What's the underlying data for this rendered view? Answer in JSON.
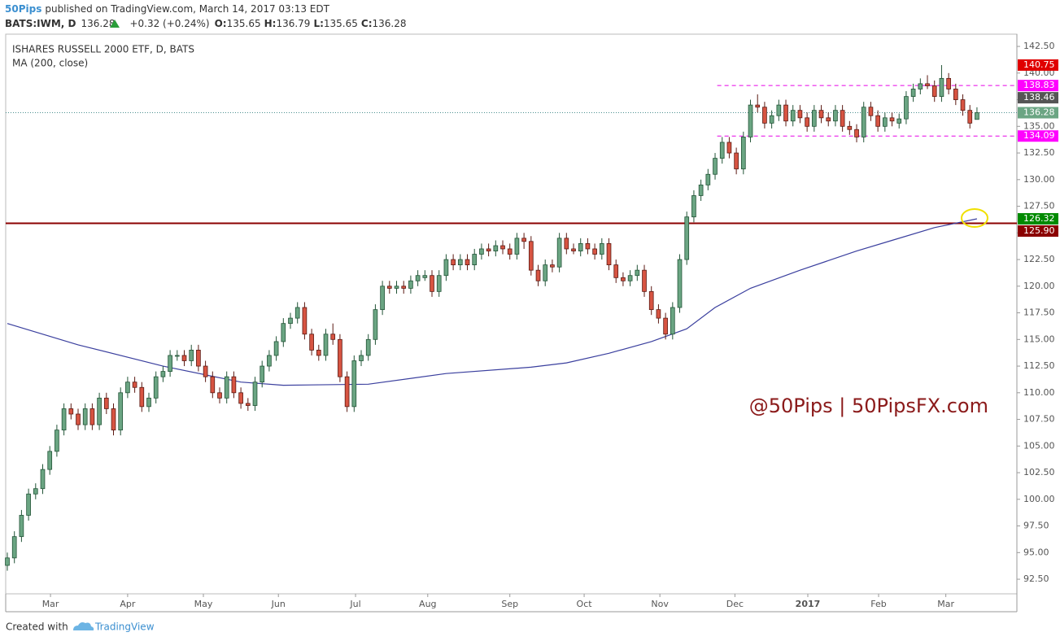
{
  "header": {
    "author": "50Pips",
    "published": "published on TradingView.com, March 14, 2017 03:13 EDT"
  },
  "quote": {
    "symbol": "BATS:IWM, D",
    "last": "136.28",
    "change": "+0.32 (+0.24%)",
    "open_label": "O:",
    "open": "135.65",
    "high_label": "H:",
    "high": "136.79",
    "low_label": "L:",
    "low": "135.65",
    "close_label": "C:",
    "close": "136.28"
  },
  "chart_data": {
    "type": "candlestick",
    "title": "ISHARES RUSSELL 2000 ETF, D, BATS",
    "up_color": "#6ba583",
    "up_border": "#225437",
    "down_color": "#d75442",
    "down_border": "#5b1a13",
    "candles": [
      [
        93.8,
        95,
        93.3,
        94.5
      ],
      [
        94.5,
        97,
        94,
        96.5
      ],
      [
        96.5,
        99,
        96,
        98.5
      ],
      [
        98.5,
        101,
        98,
        100.5
      ],
      [
        100.5,
        101.5,
        100,
        101
      ],
      [
        101,
        103.3,
        100.5,
        102.8
      ],
      [
        102.8,
        105,
        102.3,
        104.5
      ],
      [
        104.5,
        107,
        104,
        106.5
      ],
      [
        106.5,
        109,
        106,
        108.5
      ],
      [
        108.5,
        109,
        107.5,
        108
      ],
      [
        108,
        108.5,
        106.5,
        107
      ],
      [
        107,
        109,
        106.5,
        108.5
      ],
      [
        108.5,
        109,
        106.5,
        107
      ],
      [
        107,
        110,
        106.5,
        109.5
      ],
      [
        109.5,
        110,
        108,
        108.5
      ],
      [
        108.5,
        109,
        106,
        106.5
      ],
      [
        106.5,
        110.5,
        106,
        110
      ],
      [
        110,
        111.5,
        109.5,
        111
      ],
      [
        111,
        111.5,
        110,
        110.5
      ],
      [
        110.5,
        111,
        108.2,
        108.7
      ],
      [
        108.7,
        110,
        108.2,
        109.5
      ],
      [
        109.5,
        112,
        109,
        111.5
      ],
      [
        111.5,
        112.5,
        111,
        112
      ],
      [
        112,
        114,
        111.5,
        113.5
      ],
      [
        113.5,
        114,
        113,
        113.5
      ],
      [
        113.5,
        114,
        112.5,
        113
      ],
      [
        113,
        114.5,
        112.5,
        114
      ],
      [
        114,
        114.5,
        112,
        112.5
      ],
      [
        112.5,
        113,
        111,
        111.5
      ],
      [
        111.5,
        112,
        109.5,
        110
      ],
      [
        110,
        110.5,
        109,
        109.5
      ],
      [
        109.5,
        112,
        109,
        111.5
      ],
      [
        111.5,
        112,
        109.5,
        110
      ],
      [
        110,
        110.5,
        108.5,
        109
      ],
      [
        109,
        109.5,
        108.3,
        108.8
      ],
      [
        108.8,
        111.5,
        108.3,
        111
      ],
      [
        111,
        113,
        110.5,
        112.5
      ],
      [
        112.5,
        114,
        112,
        113.5
      ],
      [
        113.5,
        115.3,
        113,
        114.8
      ],
      [
        114.8,
        117,
        114.3,
        116.5
      ],
      [
        116.5,
        117.5,
        116,
        117
      ],
      [
        117,
        118.5,
        116.5,
        118
      ],
      [
        118,
        118.5,
        115,
        115.5
      ],
      [
        115.5,
        116,
        113.5,
        114
      ],
      [
        114,
        114.5,
        113,
        113.5
      ],
      [
        113.5,
        116,
        113,
        115.5
      ],
      [
        115.5,
        116.5,
        114.5,
        115
      ],
      [
        115,
        115.5,
        111,
        111.5
      ],
      [
        111.5,
        112,
        108.2,
        108.7
      ],
      [
        108.7,
        113.5,
        108.2,
        113
      ],
      [
        113,
        114,
        112.5,
        113.5
      ],
      [
        113.5,
        115.5,
        113,
        115
      ],
      [
        115,
        118.3,
        114.5,
        117.8
      ],
      [
        117.8,
        120.5,
        117.3,
        120
      ],
      [
        120,
        120.5,
        119.3,
        119.8
      ],
      [
        119.8,
        120.5,
        119.3,
        120
      ],
      [
        120,
        120.5,
        119.3,
        119.8
      ],
      [
        119.8,
        121,
        119.3,
        120.5
      ],
      [
        120.5,
        121.5,
        120,
        121
      ],
      [
        120.8,
        121.5,
        120.5,
        121
      ],
      [
        121,
        121.5,
        119,
        119.5
      ],
      [
        119.5,
        121.5,
        119,
        121
      ],
      [
        121,
        123,
        120.5,
        122.5
      ],
      [
        122.5,
        123,
        121.5,
        122
      ],
      [
        122,
        123,
        121.5,
        122.5
      ],
      [
        122.5,
        123,
        121.5,
        122
      ],
      [
        122,
        123.5,
        121.5,
        123
      ],
      [
        123,
        124,
        122.5,
        123.5
      ],
      [
        123.5,
        124,
        122.8,
        123.3
      ],
      [
        123.3,
        124.3,
        122.8,
        123.8
      ],
      [
        123.8,
        124.3,
        123,
        123.5
      ],
      [
        123.5,
        124,
        122.5,
        123
      ],
      [
        123,
        125,
        122.5,
        124.5
      ],
      [
        124.5,
        125,
        123.5,
        124.2
      ],
      [
        124.2,
        124.7,
        121,
        121.5
      ],
      [
        121.5,
        122,
        120,
        120.5
      ],
      [
        120.5,
        122.5,
        120,
        122
      ],
      [
        122,
        122.5,
        121.3,
        121.8
      ],
      [
        121.8,
        125,
        121.3,
        124.5
      ],
      [
        124.5,
        125,
        123,
        123.5
      ],
      [
        123.5,
        124,
        123,
        123.3
      ],
      [
        123.3,
        124.5,
        122.8,
        124
      ],
      [
        124,
        124.5,
        123,
        123.5
      ],
      [
        123.5,
        124,
        122.5,
        123
      ],
      [
        123,
        124.5,
        122.5,
        124
      ],
      [
        124,
        124.5,
        121.5,
        122
      ],
      [
        122,
        122.5,
        120.3,
        120.8
      ],
      [
        120.8,
        121.3,
        120,
        120.5
      ],
      [
        120.5,
        121.5,
        120,
        121
      ],
      [
        121,
        122,
        120.5,
        121.5
      ],
      [
        121.5,
        122,
        119,
        119.5
      ],
      [
        119.5,
        120,
        117.3,
        117.8
      ],
      [
        117.8,
        118.3,
        116.5,
        117
      ],
      [
        117,
        117.5,
        115,
        115.5
      ],
      [
        115.5,
        118.5,
        115,
        118
      ],
      [
        118,
        123,
        117.5,
        122.5
      ],
      [
        122.5,
        127,
        122,
        126.5
      ],
      [
        126.5,
        129,
        126,
        128.5
      ],
      [
        128.5,
        130,
        128,
        129.5
      ],
      [
        129.5,
        131,
        129,
        130.5
      ],
      [
        130.5,
        132.5,
        130,
        132
      ],
      [
        132,
        134,
        131.5,
        133.5
      ],
      [
        133.5,
        134,
        132,
        132.5
      ],
      [
        132.5,
        133,
        130.5,
        131
      ],
      [
        131,
        134.5,
        130.5,
        134
      ],
      [
        134,
        137.5,
        133.5,
        137
      ],
      [
        137,
        138,
        136.3,
        136.8
      ],
      [
        136.8,
        137.3,
        134.8,
        135.3
      ],
      [
        135.3,
        136.5,
        134.8,
        136
      ],
      [
        136,
        137.5,
        135.5,
        137
      ],
      [
        137,
        137.5,
        135,
        135.5
      ],
      [
        135.5,
        137,
        135,
        136.5
      ],
      [
        136.5,
        137,
        135.3,
        135.8
      ],
      [
        135.8,
        136.3,
        134.5,
        135
      ],
      [
        135,
        137,
        134.5,
        136.5
      ],
      [
        136.5,
        137,
        135.3,
        135.8
      ],
      [
        135.8,
        136.3,
        135,
        135.5
      ],
      [
        135.5,
        137,
        135,
        136.5
      ],
      [
        136.5,
        137,
        134.5,
        135
      ],
      [
        135,
        135.5,
        134.2,
        134.7
      ],
      [
        134.7,
        135.2,
        133.5,
        134
      ],
      [
        134,
        137.3,
        133.5,
        136.8
      ],
      [
        136.8,
        137.3,
        135.5,
        136
      ],
      [
        136,
        136.5,
        134.5,
        135
      ],
      [
        135,
        136.3,
        134.5,
        135.8
      ],
      [
        135.8,
        136.3,
        135,
        135.5
      ],
      [
        135.3,
        136.2,
        134.8,
        135.7
      ],
      [
        135.7,
        138.3,
        135.2,
        137.8
      ],
      [
        137.8,
        139,
        137.3,
        138.5
      ],
      [
        138.5,
        139.5,
        138,
        139
      ],
      [
        139,
        139.8,
        138.5,
        138.8
      ],
      [
        138.8,
        139.3,
        137.3,
        137.8
      ],
      [
        137.8,
        140.75,
        137.3,
        139.5
      ],
      [
        139.5,
        140,
        138,
        138.5
      ],
      [
        138.5,
        139,
        137,
        137.5
      ],
      [
        137.5,
        138,
        136,
        136.5
      ],
      [
        136.5,
        137,
        134.8,
        135.3
      ],
      [
        135.65,
        136.79,
        135.65,
        136.28
      ]
    ],
    "ma": {
      "name": "MA (200, close)",
      "color": "#3a3f9e",
      "x": [
        0,
        10,
        22,
        33,
        39,
        51,
        62,
        74,
        79,
        85,
        91,
        96,
        100,
        105,
        112,
        120,
        125,
        131,
        137
      ],
      "values": [
        116.5,
        114.5,
        112.5,
        111,
        110.7,
        110.8,
        111.8,
        112.4,
        112.8,
        113.7,
        114.8,
        116,
        118,
        119.8,
        121.5,
        123.3,
        124.3,
        125.5,
        126.32
      ]
    },
    "levels": [
      {
        "value": 125.9,
        "color": "#8b0000",
        "style": "solid"
      },
      {
        "value": 136.28,
        "color": "#4a8f8f",
        "style": "dotted"
      },
      {
        "value": 138.83,
        "color": "#e600e6",
        "style": "dashed",
        "from": 100.3
      },
      {
        "value": 134.09,
        "color": "#e600e6",
        "style": "dashed",
        "from": 100.3
      }
    ],
    "price_labels": [
      {
        "value": 140.75,
        "color": "#e00000"
      },
      {
        "value": 138.83,
        "color": "#ff00ff"
      },
      {
        "value": 138.46,
        "color": "#555555"
      },
      {
        "value": 136.28,
        "color": "#6ba583"
      },
      {
        "value": 134.09,
        "color": "#ff00ff"
      },
      {
        "value": 126.32,
        "color": "#008a00"
      },
      {
        "value": 125.9,
        "label": "125.90",
        "color": "#8b0000"
      }
    ],
    "xlim": [
      -0.23,
      142.64
    ],
    "ylim": [
      91.13,
      143.65
    ],
    "xticks": [
      {
        "value": 6.1,
        "label": "Mar"
      },
      {
        "value": 17,
        "label": "Apr"
      },
      {
        "value": 27.7,
        "label": "May"
      },
      {
        "value": 38.3,
        "label": "Jun"
      },
      {
        "value": 49.2,
        "label": "Jul"
      },
      {
        "value": 59.4,
        "label": "Aug"
      },
      {
        "value": 71,
        "label": "Sep"
      },
      {
        "value": 81.5,
        "label": "Oct"
      },
      {
        "value": 92.2,
        "label": "Nov"
      },
      {
        "value": 102.8,
        "label": "Dec"
      },
      {
        "value": 113.1,
        "label": "2017"
      },
      {
        "value": 123.1,
        "label": "Feb"
      },
      {
        "value": 132.6,
        "label": "Mar"
      }
    ],
    "yticks": [
      {
        "value": 92.5,
        "label": "92.50"
      },
      {
        "value": 95,
        "label": "95.00"
      },
      {
        "value": 97.5,
        "label": "97.50"
      },
      {
        "value": 100,
        "label": "100.00"
      },
      {
        "value": 102.5,
        "label": "102.50"
      },
      {
        "value": 105,
        "label": "105.00"
      },
      {
        "value": 107.5,
        "label": "107.50"
      },
      {
        "value": 110,
        "label": "110.00"
      },
      {
        "value": 112.5,
        "label": "112.50"
      },
      {
        "value": 115,
        "label": "115.00"
      },
      {
        "value": 117.5,
        "label": "117.50"
      },
      {
        "value": 120,
        "label": "120.00"
      },
      {
        "value": 122.5,
        "label": "122.50"
      },
      {
        "value": 125,
        "label": "125.00"
      },
      {
        "value": 127.5,
        "label": "127.50"
      },
      {
        "value": 130,
        "label": "130.00"
      },
      {
        "value": 132.5,
        "label": "132.50"
      },
      {
        "value": 135,
        "label": "135.00"
      },
      {
        "value": 137.5,
        "label": "137.50"
      },
      {
        "value": 140,
        "label": "140.00"
      },
      {
        "value": 142.5,
        "label": "142.50"
      }
    ],
    "watermark": "@50Pips | 50PipsFX.com"
  },
  "footer": {
    "created": "Created with",
    "brand": "TradingView"
  }
}
